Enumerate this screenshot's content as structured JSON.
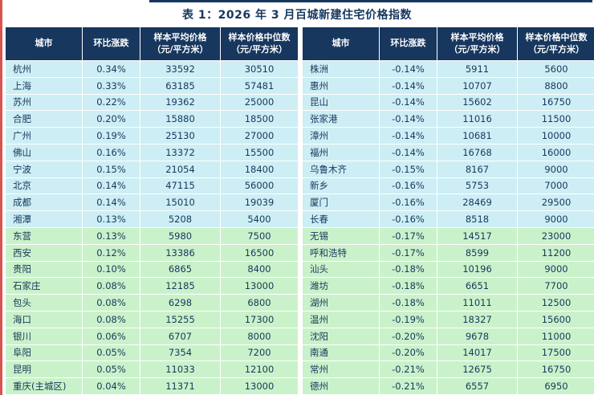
{
  "title": "表 1：2026 年 3 月百城新建住宅价格指数",
  "colors": {
    "header_bg": "#17375E",
    "text": "#17375E",
    "row_tier_a": "#CDEEF4",
    "row_tier_b": "#CAF2CA",
    "top_rule": "#17375E",
    "edge_artifact": "#D9534F"
  },
  "table_headers": [
    {
      "line1": "城市",
      "line2": ""
    },
    {
      "line1": "环比涨跌",
      "line2": ""
    },
    {
      "line1": "样本平均价格",
      "line2": "（元/平方米）"
    },
    {
      "line1": "样本价格中位数",
      "line2": "（元/平方米）"
    }
  ],
  "left_table": {
    "highlight_split": 10,
    "rows": [
      [
        "杭州",
        "0.34%",
        "33592",
        "30510"
      ],
      [
        "上海",
        "0.33%",
        "63185",
        "57481"
      ],
      [
        "苏州",
        "0.22%",
        "19362",
        "25000"
      ],
      [
        "合肥",
        "0.20%",
        "15880",
        "18500"
      ],
      [
        "广州",
        "0.19%",
        "25130",
        "27000"
      ],
      [
        "佛山",
        "0.16%",
        "13372",
        "15500"
      ],
      [
        "宁波",
        "0.15%",
        "21054",
        "18400"
      ],
      [
        "北京",
        "0.14%",
        "47115",
        "56000"
      ],
      [
        "成都",
        "0.14%",
        "15010",
        "19039"
      ],
      [
        "湘潭",
        "0.13%",
        "5208",
        "5400"
      ],
      [
        "东营",
        "0.13%",
        "5980",
        "7500"
      ],
      [
        "西安",
        "0.12%",
        "13386",
        "16500"
      ],
      [
        "贵阳",
        "0.10%",
        "6865",
        "8400"
      ],
      [
        "石家庄",
        "0.08%",
        "12185",
        "13000"
      ],
      [
        "包头",
        "0.08%",
        "6298",
        "6800"
      ],
      [
        "海口",
        "0.08%",
        "15255",
        "17300"
      ],
      [
        "银川",
        "0.06%",
        "6707",
        "8000"
      ],
      [
        "阜阳",
        "0.05%",
        "7354",
        "7200"
      ],
      [
        "昆明",
        "0.05%",
        "11033",
        "12100"
      ],
      [
        "重庆(主城区)",
        "0.04%",
        "11371",
        "13000"
      ]
    ]
  },
  "right_table": {
    "highlight_split": 10,
    "rows": [
      [
        "株洲",
        "-0.14%",
        "5911",
        "5600"
      ],
      [
        "惠州",
        "-0.14%",
        "10707",
        "8800"
      ],
      [
        "昆山",
        "-0.14%",
        "15602",
        "16750"
      ],
      [
        "张家港",
        "-0.14%",
        "11016",
        "11500"
      ],
      [
        "漳州",
        "-0.14%",
        "10681",
        "10000"
      ],
      [
        "福州",
        "-0.14%",
        "16768",
        "16000"
      ],
      [
        "乌鲁木齐",
        "-0.15%",
        "8167",
        "9000"
      ],
      [
        "新乡",
        "-0.16%",
        "5753",
        "7000"
      ],
      [
        "厦门",
        "-0.16%",
        "28469",
        "29500"
      ],
      [
        "长春",
        "-0.16%",
        "8518",
        "9000"
      ],
      [
        "无锡",
        "-0.17%",
        "14517",
        "23000"
      ],
      [
        "呼和浩特",
        "-0.17%",
        "8599",
        "11200"
      ],
      [
        "汕头",
        "-0.18%",
        "10196",
        "9000"
      ],
      [
        "潍坊",
        "-0.18%",
        "6651",
        "7700"
      ],
      [
        "湖州",
        "-0.18%",
        "11011",
        "12500"
      ],
      [
        "温州",
        "-0.19%",
        "18327",
        "15600"
      ],
      [
        "沈阳",
        "-0.20%",
        "9678",
        "11000"
      ],
      [
        "南通",
        "-0.20%",
        "14017",
        "17500"
      ],
      [
        "常州",
        "-0.21%",
        "12675",
        "16750"
      ],
      [
        "德州",
        "-0.21%",
        "6557",
        "6950"
      ]
    ]
  }
}
